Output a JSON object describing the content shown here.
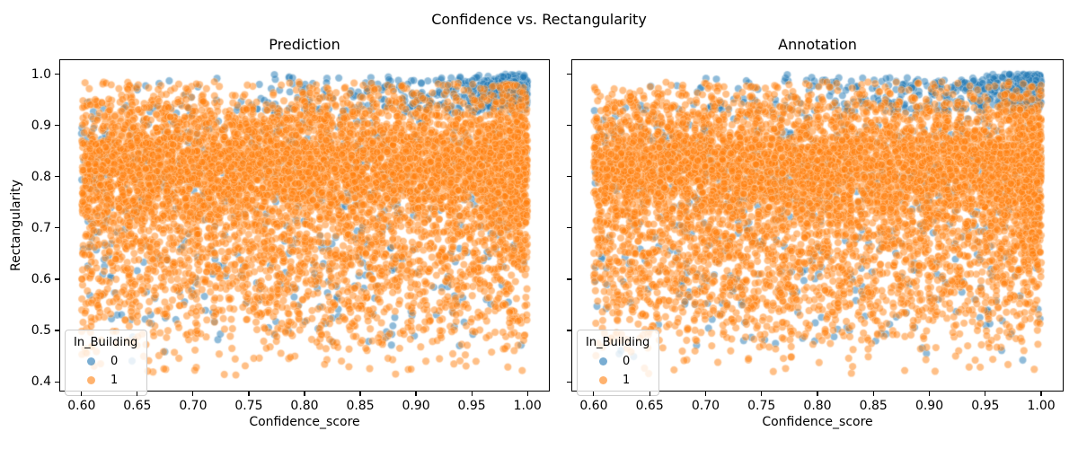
{
  "figure": {
    "suptitle": "Confidence vs. Rectangularity",
    "background": "#ffffff"
  },
  "chart_data": {
    "type": "scatter",
    "suptitle": "Confidence vs. Rectangularity",
    "panels": [
      {
        "title": "Prediction",
        "xlabel": "Confidence_score",
        "ylabel": "Rectangularity",
        "seed": 1042,
        "show_y_tick_labels": true
      },
      {
        "title": "Annotation",
        "xlabel": "Confidence_score",
        "ylabel": "",
        "seed": 7321,
        "show_y_tick_labels": false
      }
    ],
    "x_axis": {
      "label": "Confidence_score",
      "lim": [
        0.58,
        1.02
      ],
      "ticks": [
        {
          "v": 0.6,
          "label": "0.60"
        },
        {
          "v": 0.65,
          "label": "0.65"
        },
        {
          "v": 0.7,
          "label": "0.70"
        },
        {
          "v": 0.75,
          "label": "0.75"
        },
        {
          "v": 0.8,
          "label": "0.80"
        },
        {
          "v": 0.85,
          "label": "0.85"
        },
        {
          "v": 0.9,
          "label": "0.90"
        },
        {
          "v": 0.95,
          "label": "0.95"
        },
        {
          "v": 1.0,
          "label": "1.00"
        }
      ]
    },
    "y_axis": {
      "label": "Rectangularity",
      "lim": [
        0.381,
        1.029
      ],
      "ticks": [
        {
          "v": 0.4,
          "label": "0.4"
        },
        {
          "v": 0.5,
          "label": "0.5"
        },
        {
          "v": 0.6,
          "label": "0.6"
        },
        {
          "v": 0.7,
          "label": "0.7"
        },
        {
          "v": 0.8,
          "label": "0.8"
        },
        {
          "v": 0.9,
          "label": "0.9"
        },
        {
          "v": 1.0,
          "label": "1.0"
        }
      ]
    },
    "legend": {
      "title": "In_Building",
      "entries": [
        {
          "label": "0",
          "series": 0
        },
        {
          "label": "1",
          "series": 1
        }
      ]
    },
    "marker": {
      "radius": 4.2,
      "alpha": 0.5,
      "edge_color": "rgba(255,255,255,0.85)",
      "edge_width": 0.7
    },
    "series": [
      {
        "name": "0",
        "color": "#1f77b4",
        "n": 1250,
        "components": [
          {
            "w": 0.3,
            "x": {
              "type": "normal",
              "mu": 1.0,
              "sd": 0.02,
              "min": 0.92,
              "max": 1.0
            },
            "y": {
              "type": "normal",
              "mu": 0.975,
              "sd": 0.02,
              "min": 0.93,
              "max": 1.0
            }
          },
          {
            "w": 0.2,
            "x": {
              "type": "normal",
              "mu": 0.97,
              "sd": 0.13,
              "min": 0.6,
              "max": 1.0
            },
            "y": {
              "type": "uniform",
              "a": 0.925,
              "b": 0.995
            }
          },
          {
            "w": 0.32,
            "x": {
              "type": "uniform",
              "a": 0.6,
              "b": 1.0
            },
            "y": {
              "type": "normal",
              "mu": 0.83,
              "sd": 0.065,
              "min": 0.62,
              "max": 0.955
            }
          },
          {
            "w": 0.18,
            "x": {
              "type": "uniform",
              "a": 0.6,
              "b": 1.0
            },
            "y": {
              "type": "normal",
              "mu": 0.63,
              "sd": 0.1,
              "min": 0.44,
              "max": 0.82
            }
          }
        ]
      },
      {
        "name": "1",
        "color": "#ff7f0e",
        "n": 6800,
        "components": [
          {
            "w": 0.58,
            "x": {
              "type": "uniform",
              "a": 0.6,
              "b": 1.0
            },
            "y": {
              "type": "normal",
              "mu": 0.825,
              "sd": 0.055,
              "min": 0.7,
              "max": 0.96
            }
          },
          {
            "w": 0.2,
            "x": {
              "type": "uniform",
              "a": 0.6,
              "b": 1.0
            },
            "y": {
              "type": "normal",
              "mu": 0.69,
              "sd": 0.065,
              "min": 0.52,
              "max": 0.82
            }
          },
          {
            "w": 0.12,
            "x": {
              "type": "uniform",
              "a": 0.6,
              "b": 1.0
            },
            "y": {
              "type": "normal",
              "mu": 0.56,
              "sd": 0.065,
              "min": 0.413,
              "max": 0.7
            }
          },
          {
            "w": 0.05,
            "x": {
              "type": "uniform",
              "a": 0.6,
              "b": 1.0
            },
            "y": {
              "type": "uniform",
              "a": 0.9,
              "b": 0.985
            }
          },
          {
            "w": 0.05,
            "x": {
              "type": "normal",
              "mu": 1.0,
              "sd": 0.018,
              "min": 0.93,
              "max": 1.0
            },
            "y": {
              "type": "normal",
              "mu": 0.82,
              "sd": 0.09,
              "min": 0.5,
              "max": 0.98
            }
          }
        ]
      }
    ],
    "outliers": [
      {
        "series": "0",
        "x": 0.773,
        "y": 0.999
      }
    ]
  }
}
